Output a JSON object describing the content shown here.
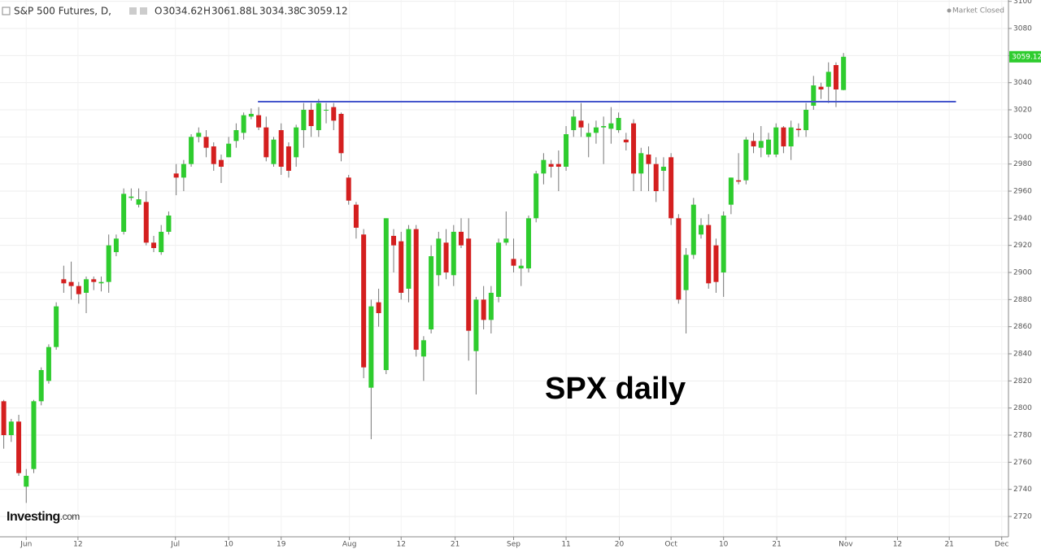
{
  "chart_data": {
    "type": "candlestick",
    "header": {
      "symbol": "S&P 500 Futures, D,",
      "o_label": "O",
      "o": "3034.62",
      "h_label": "H",
      "h": "3061.88",
      "l_label": "L",
      "l": "3034.38",
      "c_label": "C",
      "c": "3059.12",
      "status": "Market Closed"
    },
    "annotation": "SPX daily",
    "brand": "Investing",
    "brand_suffix": ".com",
    "last_price_label": "3059.12",
    "up_color": "#2ecc2e",
    "down_color": "#d41f1f",
    "open": [
      2805,
      2780,
      2790,
      2742,
      2755,
      2805,
      2820,
      2845,
      2895,
      2893,
      2890,
      2885,
      2895,
      2892,
      2893,
      2915,
      2930,
      2955,
      2950,
      2952,
      2922,
      2915,
      2930,
      2973,
      2970,
      2980,
      3000,
      3000,
      2993,
      2983,
      2985,
      2997,
      3003,
      3015,
      3016,
      3007,
      2980,
      3005,
      2993,
      2985,
      3005,
      3020,
      3005,
      3020,
      3022,
      3017,
      2970,
      2950,
      2928,
      2815,
      2878,
      2828,
      2927,
      2923,
      2888,
      2932,
      2838,
      2858,
      2898,
      2922,
      2898,
      2930,
      2925,
      2842,
      2880,
      2865,
      2882,
      2922,
      2910,
      2903,
      2903,
      2940,
      2973,
      2980,
      2980,
      2978,
      3005,
      3012,
      3000,
      3003,
      3007,
      3006,
      3005,
      2998,
      3010,
      2973,
      2987,
      2980,
      2975,
      2985,
      2940,
      2887,
      2913,
      2928,
      2935,
      2920,
      2900,
      2950,
      2968,
      2968,
      2997,
      2992,
      2987,
      2987,
      3007,
      2993,
      3006,
      3005,
      3023,
      3037,
      3037,
      3053,
      3034.62
    ],
    "high": [
      2806,
      2792,
      2795,
      2755,
      2806,
      2830,
      2847,
      2878,
      2905,
      2908,
      2893,
      2897,
      2897,
      2897,
      2928,
      2928,
      2962,
      2962,
      2962,
      2960,
      2927,
      2935,
      2945,
      2980,
      2983,
      3002,
      3007,
      3005,
      2996,
      2987,
      3000,
      3010,
      3018,
      3021,
      3022,
      3015,
      3000,
      3010,
      2996,
      3009,
      3025,
      3025,
      3028,
      3025,
      3025,
      3018,
      2972,
      2952,
      2932,
      2880,
      2888,
      2940,
      2932,
      2930,
      2935,
      2935,
      2853,
      2920,
      2930,
      2932,
      2935,
      2940,
      2940,
      2882,
      2890,
      2890,
      2925,
      2945,
      2925,
      2910,
      2942,
      2975,
      2988,
      2983,
      2990,
      3008,
      3020,
      3025,
      3010,
      3012,
      3015,
      3022,
      3018,
      3003,
      3013,
      2992,
      2993,
      2985,
      2985,
      2988,
      2943,
      2918,
      2955,
      2940,
      2943,
      2925,
      2945,
      2970,
      2988,
      3000,
      3003,
      3008,
      3003,
      3010,
      3008,
      3012,
      3010,
      3025,
      3045,
      3040,
      3055,
      3055,
      3061.88
    ],
    "low": [
      2770,
      2775,
      2750,
      2730,
      2752,
      2802,
      2818,
      2843,
      2885,
      2880,
      2877,
      2870,
      2887,
      2886,
      2885,
      2912,
      2928,
      2953,
      2948,
      2920,
      2915,
      2913,
      2928,
      2957,
      2960,
      2978,
      2996,
      2985,
      2975,
      2966,
      2985,
      2992,
      2998,
      3013,
      3005,
      2982,
      2978,
      2972,
      2970,
      2978,
      2992,
      3000,
      3000,
      3010,
      3005,
      2982,
      2950,
      2925,
      2822,
      2777,
      2860,
      2825,
      2900,
      2880,
      2878,
      2838,
      2820,
      2855,
      2890,
      2895,
      2890,
      2918,
      2835,
      2810,
      2858,
      2855,
      2878,
      2920,
      2900,
      2890,
      2900,
      2937,
      2965,
      2970,
      2960,
      2975,
      3000,
      3000,
      2985,
      2995,
      2980,
      2995,
      3003,
      2990,
      2960,
      2960,
      2960,
      2952,
      2960,
      2935,
      2877,
      2855,
      2910,
      2925,
      2888,
      2885,
      2882,
      2943,
      2965,
      2965,
      2988,
      2985,
      2985,
      2985,
      2988,
      2983,
      3000,
      3000,
      3020,
      3028,
      3025,
      3022,
      3034.38
    ],
    "close": [
      2780,
      2790,
      2752,
      2750,
      2805,
      2828,
      2845,
      2875,
      2892,
      2890,
      2884,
      2895,
      2893,
      2893,
      2920,
      2925,
      2958,
      2956,
      2954,
      2922,
      2918,
      2930,
      2942,
      2970,
      2980,
      3000,
      3003,
      2992,
      2980,
      2978,
      2995,
      3005,
      3016,
      3017,
      3007,
      2985,
      2998,
      2978,
      2975,
      3007,
      3020,
      3008,
      3025,
      3020,
      3012,
      2988,
      2953,
      2933,
      2830,
      2875,
      2870,
      2940,
      2920,
      2885,
      2932,
      2843,
      2850,
      2912,
      2925,
      2900,
      2930,
      2920,
      2857,
      2880,
      2865,
      2885,
      2922,
      2925,
      2905,
      2905,
      2940,
      2973,
      2983,
      2978,
      2978,
      3002,
      3015,
      3007,
      3003,
      3007,
      3008,
      3010,
      3014,
      2996,
      2973,
      2988,
      2980,
      2960,
      2978,
      2940,
      2880,
      2913,
      2950,
      2935,
      2892,
      2893,
      2942,
      2970,
      2967,
      2998,
      2993,
      2997,
      2998,
      3007,
      2993,
      3007,
      3005,
      3020,
      3038,
      3035,
      3048,
      3035,
      3059.12
    ],
    "hline": {
      "value": 3026,
      "x_start": 33.9,
      "x_end": 127,
      "color": "#4455cc"
    },
    "xlim": [
      -0.5,
      134
    ],
    "ylim": [
      2705,
      3101
    ],
    "yticks": [
      2720,
      2740,
      2760,
      2780,
      2800,
      2820,
      2840,
      2860,
      2880,
      2900,
      2920,
      2940,
      2960,
      2980,
      3000,
      3020,
      3040,
      3060,
      3080,
      3100
    ],
    "xticks": [
      {
        "value": 3.0,
        "label": "Jun"
      },
      {
        "value": 9.9,
        "label": "12"
      },
      {
        "value": 22.9,
        "label": "Jul"
      },
      {
        "value": 30.0,
        "label": "10"
      },
      {
        "value": 37.0,
        "label": "19"
      },
      {
        "value": 46.1,
        "label": "Aug"
      },
      {
        "value": 53.0,
        "label": "12"
      },
      {
        "value": 60.2,
        "label": "21"
      },
      {
        "value": 68.0,
        "label": "Sep"
      },
      {
        "value": 75.0,
        "label": "11"
      },
      {
        "value": 82.1,
        "label": "20"
      },
      {
        "value": 89.0,
        "label": "Oct"
      },
      {
        "value": 96.0,
        "label": "10"
      },
      {
        "value": 103.1,
        "label": "21"
      },
      {
        "value": 112.3,
        "label": "Nov"
      },
      {
        "value": 119.2,
        "label": "12"
      },
      {
        "value": 126.1,
        "label": "21"
      },
      {
        "value": 133.1,
        "label": "Dec"
      }
    ],
    "grid": true
  }
}
